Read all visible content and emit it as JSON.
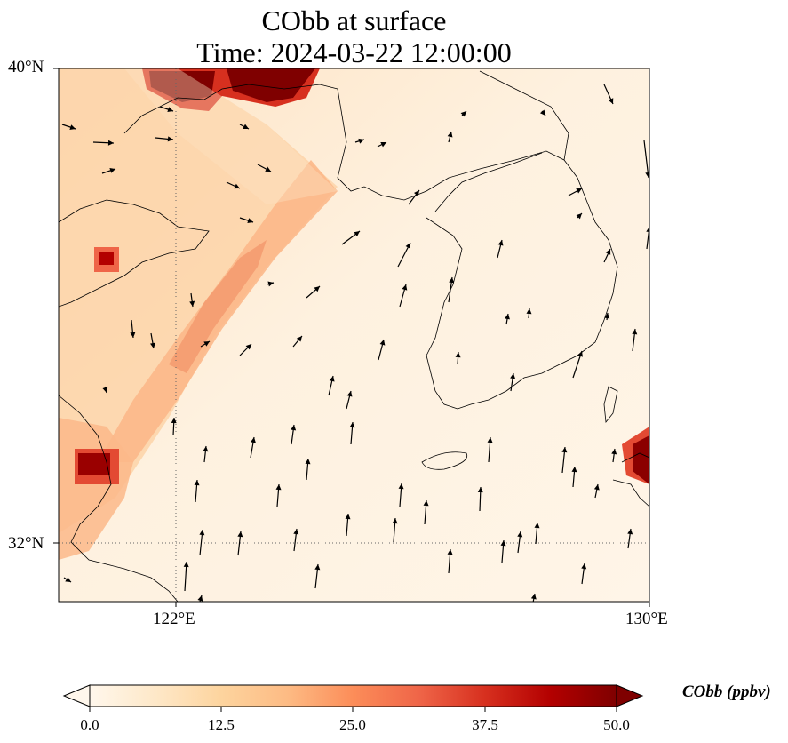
{
  "title": {
    "line1": "CObb at surface",
    "line2": "Time: 2024-03-22 12:00:00"
  },
  "axes": {
    "lat_ticks": [
      "40°N",
      "32°N"
    ],
    "lon_ticks": [
      "122°E",
      "130°E"
    ],
    "lon_range": [
      120,
      130
    ],
    "lat_range": [
      31,
      40
    ]
  },
  "colorbar": {
    "label": "CObb (ppbv)",
    "ticks": [
      "0.0",
      "12.5",
      "25.0",
      "37.5",
      "50.0"
    ],
    "min": 0,
    "max": 50,
    "colormap": "OrRd",
    "extend": "both"
  },
  "colors": {
    "low": "#fff7ec",
    "mid": "#fdbb84",
    "high": "#7f0000",
    "coast": "#000000",
    "grid": "#666666"
  }
}
